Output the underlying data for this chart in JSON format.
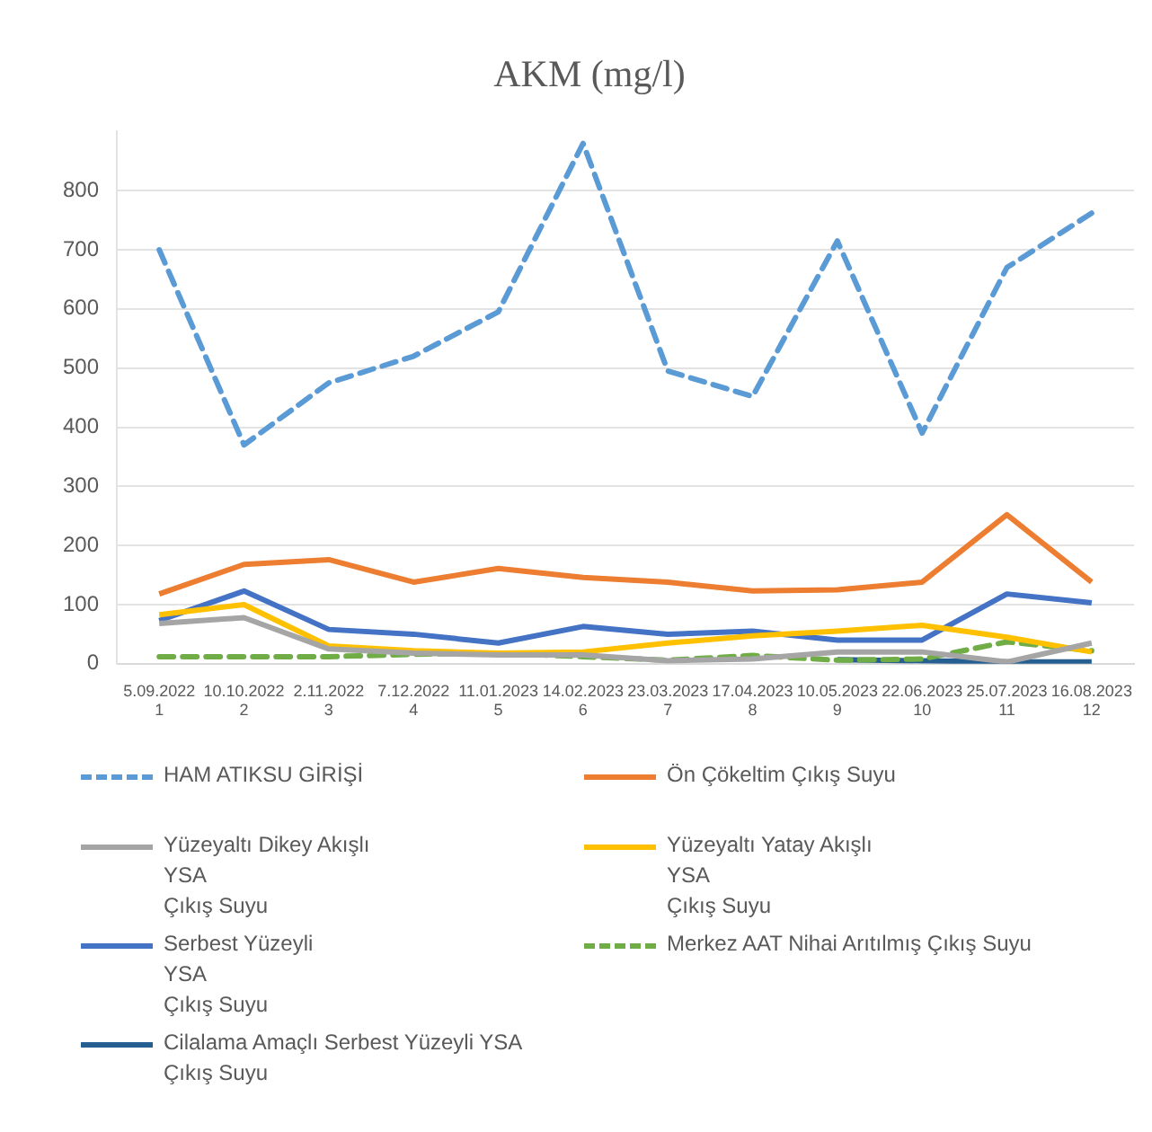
{
  "chart_data": {
    "type": "line",
    "title": "AKM (mg/l)",
    "categories": [
      "5.09.2022\n1",
      "10.10.2022\n2",
      "2.11.2022\n3",
      "7.12.2022\n4",
      "11.01.2023\n5",
      "14.02.2023\n6",
      "23.03.2023\n7",
      "17.04.2023\n8",
      "10.05.2023\n9",
      "22.06.2023\n10",
      "25.07.2023\n11",
      "16.08.2023\n12"
    ],
    "ylim": [
      0,
      900
    ],
    "yticks": [
      0,
      100,
      200,
      300,
      400,
      500,
      600,
      700,
      800
    ],
    "grid": "y",
    "legend": "bottom",
    "marker": "none",
    "series": [
      {
        "name": "HAM ATIKSU GİRİŞİ",
        "color": "#5b9bd5",
        "line_style": "dashed",
        "values": [
          700,
          370,
          475,
          520,
          595,
          880,
          495,
          452,
          715,
          390,
          670,
          762
        ]
      },
      {
        "name": "Ön Çökeltim Çıkış Suyu",
        "color": "#ed7d31",
        "values": [
          118,
          168,
          176,
          138,
          161,
          146,
          138,
          123,
          125,
          138,
          252,
          138
        ]
      },
      {
        "name": "Yüzeyaltı Dikey Akışlı\nYSA\nÇıkış Suyu",
        "color": "#a5a5a5",
        "values": [
          68,
          78,
          25,
          18,
          15,
          15,
          5,
          8,
          20,
          20,
          3,
          35
        ]
      },
      {
        "name": "Yüzeyaltı Yatay Akışlı\nYSA\nÇıkış Suyu",
        "color": "#ffc000",
        "values": [
          83,
          100,
          30,
          22,
          18,
          20,
          35,
          47,
          55,
          65,
          45,
          20
        ]
      },
      {
        "name": "Serbest Yüzeyli\nYSA\nÇıkış Suyu",
        "color": "#4472c4",
        "values": [
          73,
          123,
          58,
          50,
          35,
          63,
          50,
          55,
          40,
          40,
          118,
          103
        ]
      },
      {
        "name": "Merkez AAT Nihai Arıtılmış Çıkış Suyu",
        "color": "#70ad47",
        "line_style": "dashed",
        "values": [
          12,
          12,
          12,
          16,
          18,
          12,
          6,
          14,
          6,
          8,
          37,
          22
        ]
      },
      {
        "name": "Cilalama Amaçlı Serbest Yüzeyli YSA\nÇıkış Suyu",
        "color": "#255e91",
        "values": [
          null,
          null,
          null,
          null,
          null,
          null,
          null,
          null,
          7,
          5,
          3,
          3
        ]
      }
    ]
  }
}
